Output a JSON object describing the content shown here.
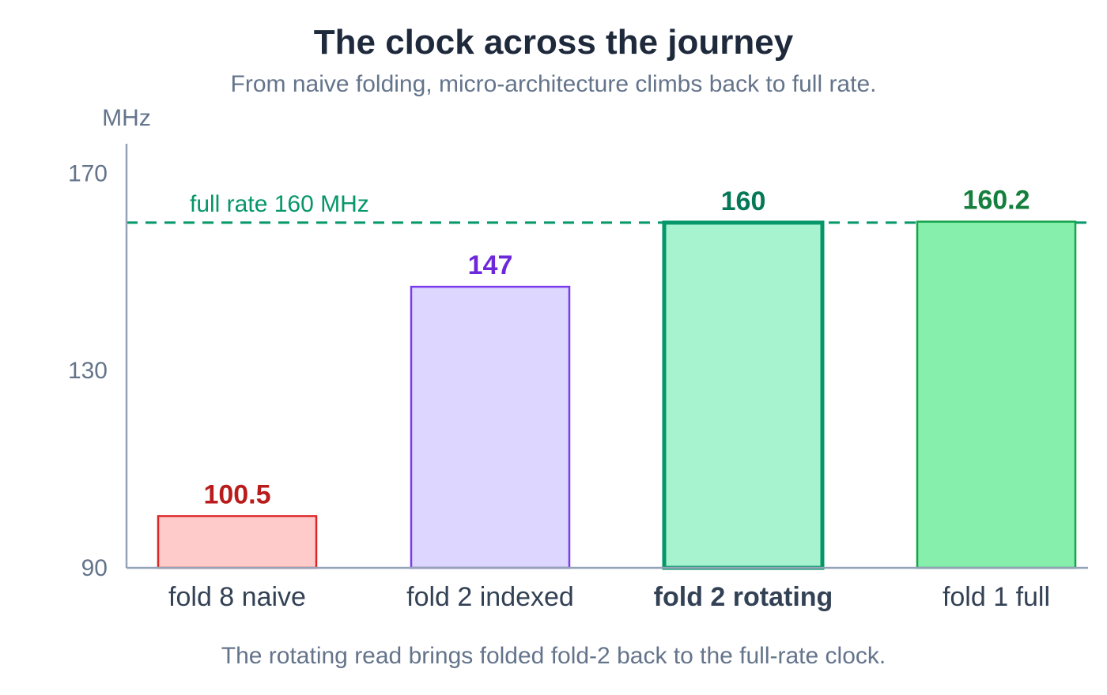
{
  "chart_data": {
    "type": "bar",
    "title": "The clock across the journey",
    "subtitle": "From naive folding, micro-architecture climbs back to full rate.",
    "ylabel": "MHz",
    "ylim": [
      90,
      176
    ],
    "yticks": [
      90,
      130,
      170
    ],
    "categories": [
      "fold 8 naive",
      "fold 2 indexed",
      "fold 2 rotating",
      "fold 1 full"
    ],
    "values": [
      100.5,
      147,
      160,
      160.2
    ],
    "value_labels": [
      "100.5",
      "147",
      "160",
      "160.2"
    ],
    "highlight_index": 2,
    "bar_colors": [
      {
        "fill": "#fecaca",
        "stroke": "#dc2626",
        "label": "#b91c1c"
      },
      {
        "fill": "#ddd6fe",
        "stroke": "#7c3aed",
        "label": "#6d28d9"
      },
      {
        "fill": "#a7f3d0",
        "stroke": "#059669",
        "label": "#047857"
      },
      {
        "fill": "#86efac",
        "stroke": "#16a34a",
        "label": "#15803d"
      }
    ],
    "reference_line": {
      "value": 160,
      "label": "full rate 160 MHz",
      "color": "#059669",
      "style": "dashed"
    },
    "axis_color": "#94a3b8",
    "grid": false,
    "footnote": "The rotating read brings folded fold-2 back to the full-rate clock."
  }
}
